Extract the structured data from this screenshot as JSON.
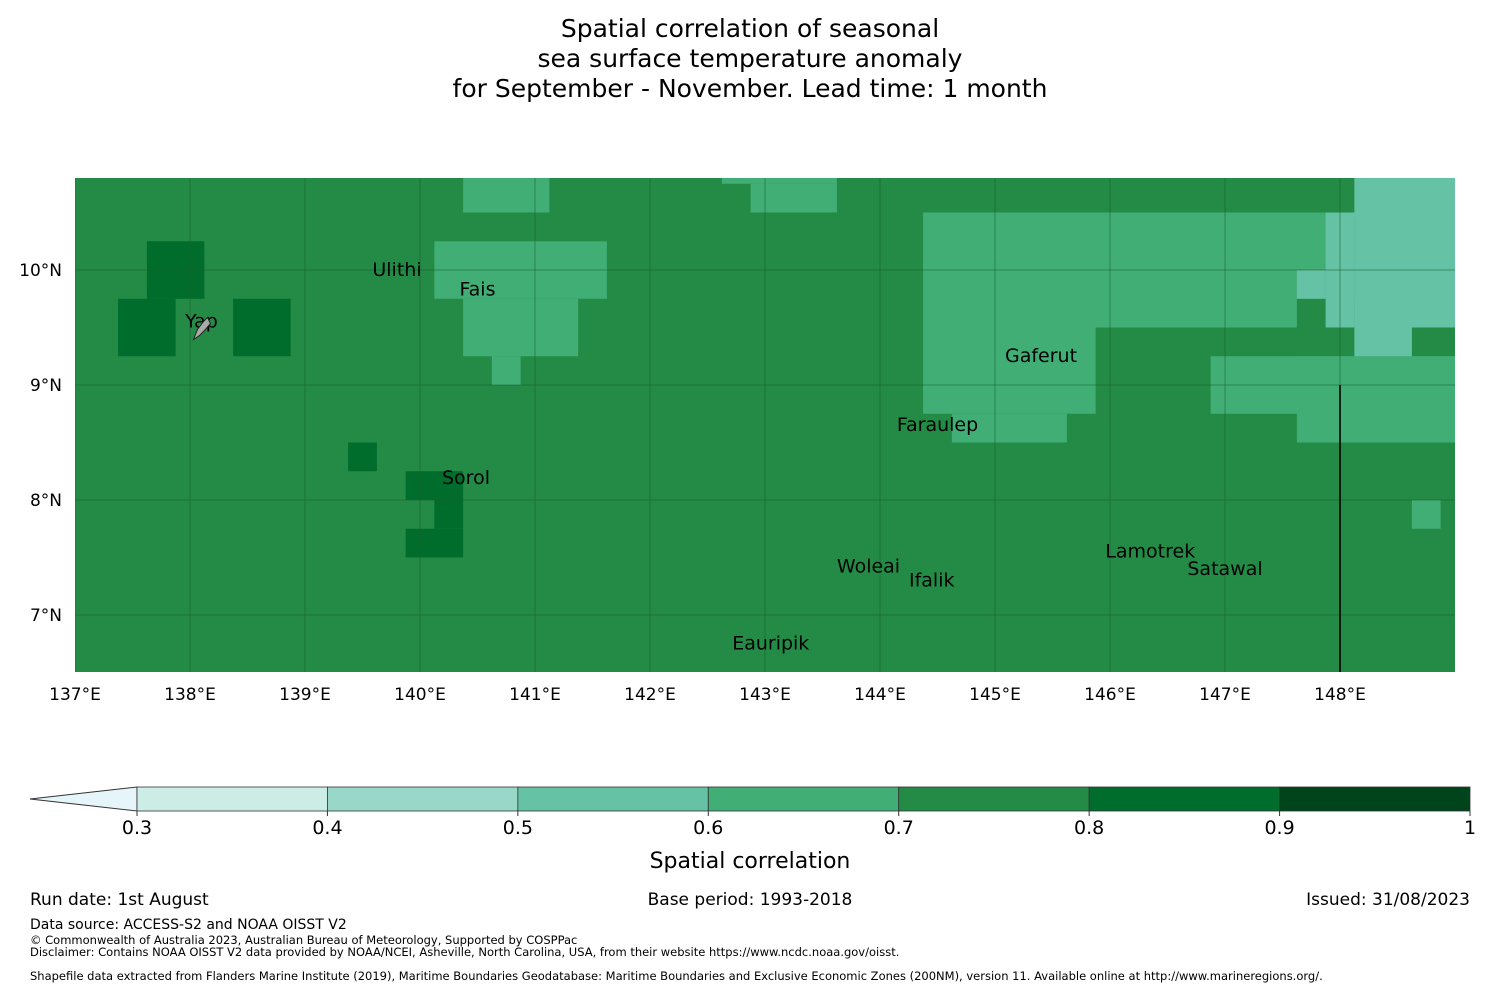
{
  "title_lines": [
    "Spatial correlation of seasonal",
    "sea surface temperature anomaly",
    "for September - November. Lead time: 1 month"
  ],
  "map": {
    "lon_range": [
      137,
      149
    ],
    "lat_range": [
      6.5,
      10.8
    ],
    "lon_ticks": [
      137,
      138,
      139,
      140,
      141,
      142,
      143,
      144,
      145,
      146,
      147,
      148
    ],
    "lon_tick_labels": [
      "137°E",
      "138°E",
      "139°E",
      "140°E",
      "141°E",
      "142°E",
      "143°E",
      "144°E",
      "145°E",
      "146°E",
      "147°E",
      "148°E"
    ],
    "lat_ticks": [
      7,
      8,
      9,
      10
    ],
    "lat_tick_labels": [
      "7°N",
      "8°N",
      "9°N",
      "10°N"
    ],
    "grid": true,
    "background_value_class": "0.7-0.8",
    "boundary_line_lon": 148.0,
    "boundary_line_lat_range": [
      6.5,
      9.0
    ]
  },
  "chart_data": {
    "type": "heatmap",
    "value_name": "Spatial correlation",
    "default_class": "0.7-0.8",
    "cells": [
      {
        "class": "0.8-0.9",
        "lon": [
          137.375,
          137.875
        ],
        "lat": [
          9.25,
          9.75
        ]
      },
      {
        "class": "0.8-0.9",
        "lon": [
          137.625,
          138.125
        ],
        "lat": [
          9.75,
          10.25
        ]
      },
      {
        "class": "0.8-0.9",
        "lon": [
          138.375,
          138.875
        ],
        "lat": [
          9.25,
          9.75
        ]
      },
      {
        "class": "0.8-0.9",
        "lon": [
          139.375,
          139.625
        ],
        "lat": [
          8.25,
          8.5
        ]
      },
      {
        "class": "0.8-0.9",
        "lon": [
          139.875,
          140.375
        ],
        "lat": [
          8.0,
          8.25
        ]
      },
      {
        "class": "0.8-0.9",
        "lon": [
          140.125,
          140.375
        ],
        "lat": [
          7.75,
          8.0
        ]
      },
      {
        "class": "0.8-0.9",
        "lon": [
          139.875,
          140.375
        ],
        "lat": [
          7.5,
          7.75
        ]
      },
      {
        "class": "0.6-0.7",
        "lon": [
          140.375,
          141.125
        ],
        "lat": [
          10.5,
          10.8
        ]
      },
      {
        "class": "0.6-0.7",
        "lon": [
          140.125,
          141.625
        ],
        "lat": [
          9.75,
          10.25
        ]
      },
      {
        "class": "0.6-0.7",
        "lon": [
          140.375,
          141.375
        ],
        "lat": [
          9.25,
          9.75
        ]
      },
      {
        "class": "0.6-0.7",
        "lon": [
          140.625,
          140.875
        ],
        "lat": [
          9.0,
          9.25
        ]
      },
      {
        "class": "0.6-0.7",
        "lon": [
          142.625,
          143.625
        ],
        "lat": [
          10.75,
          10.8
        ]
      },
      {
        "class": "0.6-0.7",
        "lon": [
          142.875,
          143.625
        ],
        "lat": [
          10.5,
          10.75
        ]
      },
      {
        "class": "0.6-0.7",
        "lon": [
          144.625,
          148.875
        ],
        "lat": [
          9.75,
          10.5
        ]
      },
      {
        "class": "0.6-0.7",
        "lon": [
          144.375,
          147.625
        ],
        "lat": [
          9.5,
          10.5
        ]
      },
      {
        "class": "0.6-0.7",
        "lon": [
          144.375,
          145.875
        ],
        "lat": [
          8.75,
          9.5
        ]
      },
      {
        "class": "0.6-0.7",
        "lon": [
          144.625,
          145.625
        ],
        "lat": [
          8.5,
          8.75
        ]
      },
      {
        "class": "0.6-0.7",
        "lon": [
          147.625,
          149.0
        ],
        "lat": [
          8.5,
          9.25
        ]
      },
      {
        "class": "0.6-0.7",
        "lon": [
          146.875,
          149.0
        ],
        "lat": [
          8.75,
          9.25
        ]
      },
      {
        "class": "0.6-0.7",
        "lon": [
          148.625,
          148.875
        ],
        "lat": [
          7.75,
          8.0
        ]
      },
      {
        "class": "0.5-0.6",
        "lon": [
          148.125,
          149.0
        ],
        "lat": [
          9.5,
          10.8
        ]
      },
      {
        "class": "0.5-0.6",
        "lon": [
          147.875,
          148.125
        ],
        "lat": [
          9.5,
          10.5
        ]
      },
      {
        "class": "0.5-0.6",
        "lon": [
          147.625,
          147.875
        ],
        "lat": [
          9.75,
          10.0
        ]
      },
      {
        "class": "0.5-0.6",
        "lon": [
          148.125,
          148.625
        ],
        "lat": [
          9.25,
          9.5
        ]
      }
    ],
    "colorbar": {
      "label": "Spatial correlation",
      "ticks": [
        0.3,
        0.4,
        0.5,
        0.6,
        0.7,
        0.8,
        0.9,
        1
      ],
      "tick_labels": [
        "0.3",
        "0.4",
        "0.5",
        "0.6",
        "0.7",
        "0.8",
        "0.9",
        "1"
      ],
      "extend": "min",
      "classes": [
        {
          "name": "<0.3",
          "color": "#e5f5f9"
        },
        {
          "name": "0.3-0.4",
          "color": "#ccece6"
        },
        {
          "name": "0.4-0.5",
          "color": "#99d8c9"
        },
        {
          "name": "0.5-0.6",
          "color": "#66c2a4"
        },
        {
          "name": "0.6-0.7",
          "color": "#41ae76"
        },
        {
          "name": "0.7-0.8",
          "color": "#238b45"
        },
        {
          "name": "0.8-0.9",
          "color": "#006d2c"
        },
        {
          "name": "0.9-1",
          "color": "#00441b"
        }
      ]
    }
  },
  "places": [
    {
      "name": "Ulithi",
      "lon": 139.8,
      "lat": 9.95
    },
    {
      "name": "Fais",
      "lon": 140.5,
      "lat": 9.78
    },
    {
      "name": "Yap",
      "lon": 138.1,
      "lat": 9.5
    },
    {
      "name": "Gaferut",
      "lon": 145.4,
      "lat": 9.2
    },
    {
      "name": "Faraulep",
      "lon": 144.5,
      "lat": 8.6
    },
    {
      "name": "Sorol",
      "lon": 140.4,
      "lat": 8.14
    },
    {
      "name": "Woleai",
      "lon": 143.9,
      "lat": 7.37
    },
    {
      "name": "Ifalik",
      "lon": 144.45,
      "lat": 7.25
    },
    {
      "name": "Lamotrek",
      "lon": 146.35,
      "lat": 7.5
    },
    {
      "name": "Satawal",
      "lon": 147.0,
      "lat": 7.35
    },
    {
      "name": "Eauripik",
      "lon": 143.05,
      "lat": 6.7
    }
  ],
  "footer": {
    "run_date": "Run date: 1st August",
    "base_period": "Base period: 1993-2018",
    "issued": "Issued: 31/08/2023",
    "data_source": "Data source: ACCESS-S2 and NOAA OISST V2",
    "copyright": "© Commonwealth of Australia 2023, Australian Bureau of Meteorology, Supported by COSPPac",
    "disclaimer": "Disclaimer: Contains NOAA OISST V2 data provided by NOAA/NCEI, Asheville, North Carolina, USA, from their website https://www.ncdc.noaa.gov/oisst.",
    "shapefile": "Shapefile data extracted from Flanders Marine Institute (2019), Maritime Boundaries Geodatabase: Maritime Boundaries and Exclusive Economic Zones (200NM), version 11. Available online at http://www.marineregions.org/."
  }
}
